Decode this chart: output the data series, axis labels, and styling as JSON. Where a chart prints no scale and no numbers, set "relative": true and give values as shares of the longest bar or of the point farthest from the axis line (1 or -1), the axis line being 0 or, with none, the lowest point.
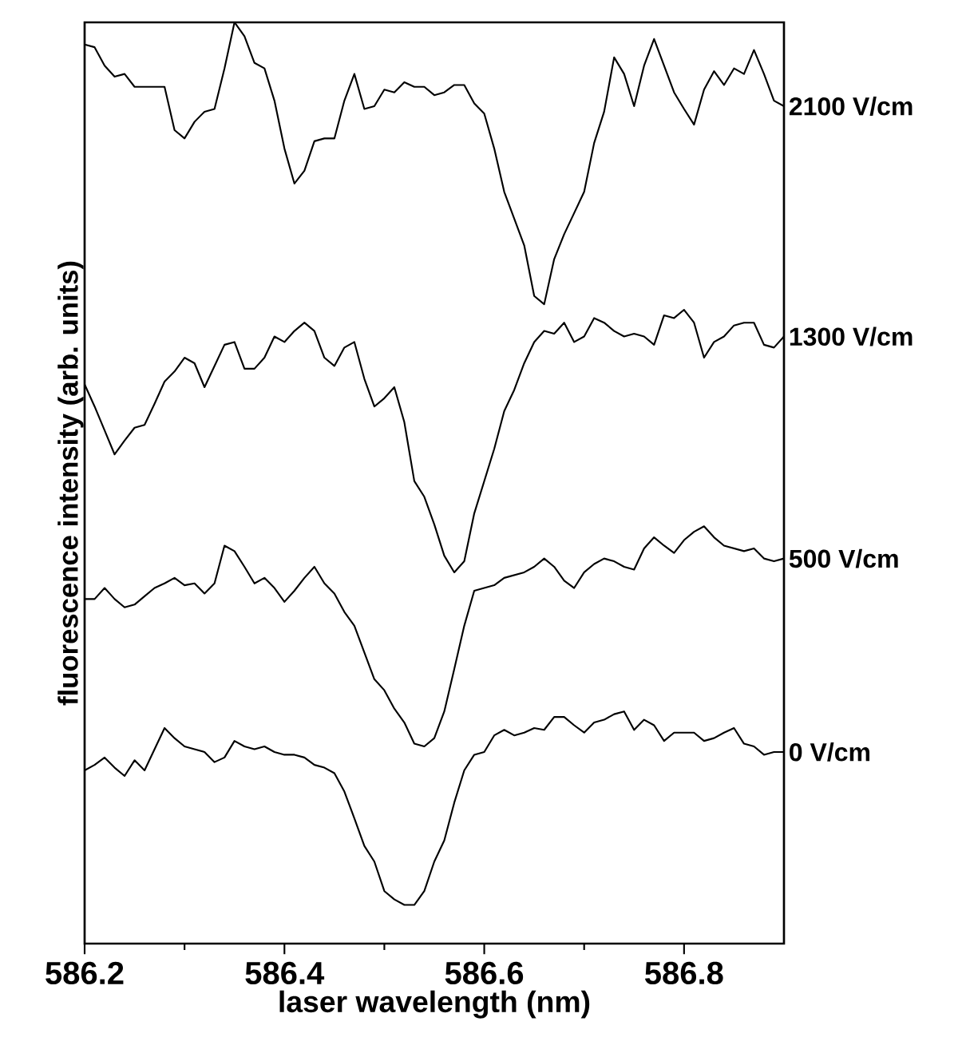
{
  "chart_data": {
    "type": "line",
    "xlabel": "laser wavelength (nm)",
    "ylabel": "fluorescence intensity (arb. units)",
    "relative": true,
    "tick_labels": "x",
    "xlim": [
      586.2,
      586.9
    ],
    "xticks": [
      586.2,
      586.4,
      586.6,
      586.8
    ],
    "x": [
      586.2,
      586.21,
      586.22,
      586.23,
      586.24,
      586.25,
      586.26,
      586.27,
      586.28,
      586.29,
      586.3,
      586.31,
      586.32,
      586.33,
      586.34,
      586.35,
      586.36,
      586.37,
      586.38,
      586.39,
      586.4,
      586.41,
      586.42,
      586.43,
      586.44,
      586.45,
      586.46,
      586.47,
      586.48,
      586.49,
      586.5,
      586.51,
      586.52,
      586.53,
      586.54,
      586.55,
      586.56,
      586.57,
      586.58,
      586.59,
      586.6,
      586.61,
      586.62,
      586.63,
      586.64,
      586.65,
      586.66,
      586.67,
      586.68,
      586.69,
      586.7,
      586.71,
      586.72,
      586.73,
      586.74,
      586.75,
      586.76,
      586.77,
      586.78,
      586.79,
      586.8,
      586.81,
      586.82,
      586.83,
      586.84,
      586.85,
      586.86,
      586.87,
      586.88,
      586.89,
      586.9
    ],
    "series": [
      {
        "name": "2100 V/cm",
        "color": "#000000",
        "values": [
          0.976,
          0.973,
          0.953,
          0.941,
          0.944,
          0.93,
          0.93,
          0.93,
          0.93,
          0.883,
          0.874,
          0.892,
          0.903,
          0.906,
          0.95,
          1.0,
          0.985,
          0.956,
          0.95,
          0.915,
          0.863,
          0.825,
          0.839,
          0.871,
          0.874,
          0.874,
          0.915,
          0.944,
          0.906,
          0.909,
          0.927,
          0.924,
          0.935,
          0.93,
          0.93,
          0.921,
          0.924,
          0.932,
          0.932,
          0.912,
          0.901,
          0.863,
          0.816,
          0.787,
          0.758,
          0.703,
          0.694,
          0.743,
          0.77,
          0.793,
          0.816,
          0.869,
          0.903,
          0.962,
          0.944,
          0.909,
          0.953,
          0.982,
          0.953,
          0.924,
          0.906,
          0.889,
          0.927,
          0.947,
          0.932,
          0.95,
          0.944,
          0.97,
          0.944,
          0.915,
          0.909
        ]
      },
      {
        "name": "1300 V/cm",
        "color": "#000000",
        "values": [
          0.607,
          0.583,
          0.557,
          0.531,
          0.546,
          0.56,
          0.563,
          0.586,
          0.61,
          0.621,
          0.636,
          0.63,
          0.604,
          0.627,
          0.65,
          0.653,
          0.624,
          0.624,
          0.636,
          0.659,
          0.653,
          0.665,
          0.674,
          0.665,
          0.636,
          0.627,
          0.647,
          0.653,
          0.613,
          0.583,
          0.592,
          0.604,
          0.566,
          0.502,
          0.485,
          0.455,
          0.421,
          0.403,
          0.415,
          0.467,
          0.502,
          0.537,
          0.578,
          0.601,
          0.63,
          0.653,
          0.665,
          0.662,
          0.674,
          0.653,
          0.659,
          0.679,
          0.674,
          0.665,
          0.659,
          0.662,
          0.659,
          0.65,
          0.682,
          0.679,
          0.688,
          0.674,
          0.636,
          0.653,
          0.659,
          0.671,
          0.674,
          0.674,
          0.65,
          0.647,
          0.659
        ]
      },
      {
        "name": "500 V/cm",
        "color": "#000000",
        "values": [
          0.374,
          0.374,
          0.386,
          0.374,
          0.365,
          0.368,
          0.377,
          0.386,
          0.391,
          0.397,
          0.389,
          0.391,
          0.38,
          0.391,
          0.432,
          0.426,
          0.409,
          0.391,
          0.397,
          0.386,
          0.371,
          0.383,
          0.397,
          0.409,
          0.391,
          0.38,
          0.36,
          0.345,
          0.316,
          0.287,
          0.275,
          0.255,
          0.24,
          0.217,
          0.214,
          0.223,
          0.252,
          0.298,
          0.345,
          0.383,
          0.386,
          0.389,
          0.397,
          0.4,
          0.403,
          0.409,
          0.418,
          0.409,
          0.394,
          0.386,
          0.403,
          0.412,
          0.418,
          0.415,
          0.409,
          0.406,
          0.429,
          0.441,
          0.432,
          0.424,
          0.438,
          0.447,
          0.453,
          0.441,
          0.432,
          0.429,
          0.426,
          0.429,
          0.418,
          0.415,
          0.418
        ]
      },
      {
        "name": "0 V/cm",
        "color": "#000000",
        "values": [
          0.188,
          0.194,
          0.202,
          0.191,
          0.182,
          0.199,
          0.188,
          0.211,
          0.234,
          0.223,
          0.214,
          0.211,
          0.208,
          0.197,
          0.202,
          0.22,
          0.214,
          0.211,
          0.214,
          0.208,
          0.205,
          0.205,
          0.202,
          0.194,
          0.191,
          0.185,
          0.165,
          0.136,
          0.106,
          0.089,
          0.057,
          0.048,
          0.042,
          0.042,
          0.057,
          0.089,
          0.112,
          0.153,
          0.188,
          0.205,
          0.208,
          0.226,
          0.232,
          0.226,
          0.229,
          0.234,
          0.232,
          0.246,
          0.246,
          0.237,
          0.229,
          0.24,
          0.243,
          0.249,
          0.252,
          0.232,
          0.243,
          0.237,
          0.22,
          0.229,
          0.229,
          0.229,
          0.22,
          0.223,
          0.229,
          0.234,
          0.217,
          0.214,
          0.205,
          0.208,
          0.208
        ]
      }
    ]
  }
}
